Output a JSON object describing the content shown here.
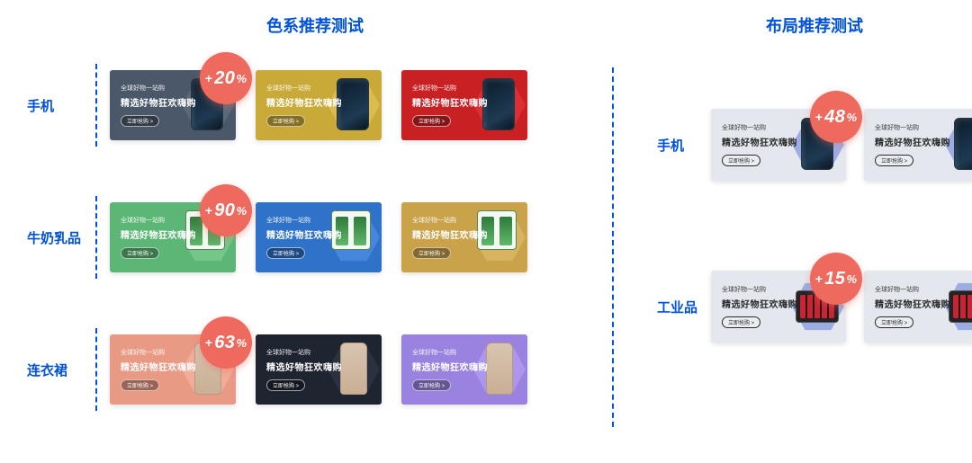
{
  "page": {
    "background": "#ffffff",
    "accent_color": "#0052d9",
    "badge_color": "#ee6a5e",
    "badge_text_color": "#ffffff"
  },
  "card_copy": {
    "line1": "全球好物一站购",
    "line2": "精选好物狂欢嗨购",
    "pill": "立即抢购 >"
  },
  "left": {
    "title": "色系推荐测试",
    "rows": [
      {
        "label": "手机",
        "product": "phone",
        "badge": "20",
        "variants": [
          {
            "bg": "#4a5869",
            "hex": "#5f6c7d",
            "text": "light"
          },
          {
            "bg": "#c9a938",
            "hex": "#dbbf54",
            "text": "light"
          },
          {
            "bg": "#c92024",
            "hex": "#e03236",
            "text": "light"
          }
        ]
      },
      {
        "label": "牛奶乳品",
        "product": "milk",
        "badge": "90",
        "variants": [
          {
            "bg": "#5cb776",
            "hex": "#78c98d",
            "text": "light"
          },
          {
            "bg": "#2f72c9",
            "hex": "#4a8be0",
            "text": "light"
          },
          {
            "bg": "#c9a24a",
            "hex": "#dbb764",
            "text": "light"
          }
        ]
      },
      {
        "label": "连衣裙",
        "product": "dress",
        "badge": "63",
        "variants": [
          {
            "bg": "#e89a84",
            "hex": "#f2b09c",
            "text": "light"
          },
          {
            "bg": "#1f2431",
            "hex": "#2e3442",
            "text": "light"
          },
          {
            "bg": "#9a83e0",
            "hex": "#b09af0",
            "text": "light"
          }
        ]
      }
    ]
  },
  "right": {
    "title": "布局推荐测试",
    "rows": [
      {
        "label": "手机",
        "product": "phone",
        "badge": "48",
        "variants": [
          {
            "bg": "#e4e7ee",
            "hex": "#8fa2e0",
            "text": "dark"
          },
          {
            "bg": "#e4e7ee",
            "hex": "#8fa2e0",
            "text": "dark"
          }
        ]
      },
      {
        "label": "工业品",
        "product": "tool",
        "badge": "15",
        "variants": [
          {
            "bg": "#e4e7ee",
            "hex": "#8fa2e0",
            "text": "dark"
          },
          {
            "bg": "#e4e7ee",
            "hex": "#8fa2e0",
            "text": "dark"
          }
        ]
      }
    ]
  }
}
